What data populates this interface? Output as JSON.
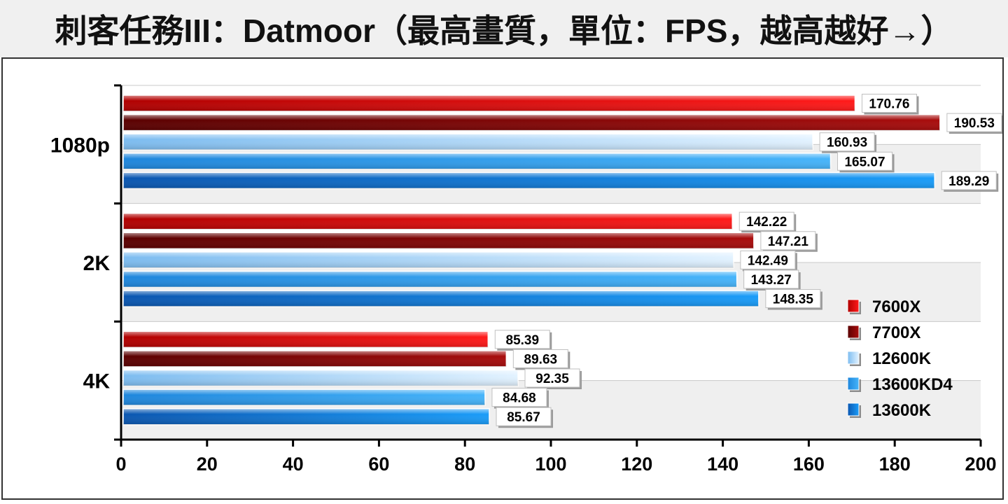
{
  "title": "刺客任務III：Datmoor（最高畫質，單位：FPS，越高越好→）",
  "chart_data": {
    "type": "bar",
    "orientation": "horizontal",
    "title": "刺客任務III：Datmoor（最高畫質，單位：FPS，越高越好→）",
    "categories": [
      "1080p",
      "2K",
      "4K"
    ],
    "series": [
      {
        "name": "7600X",
        "color": "#e01010",
        "values": [
          170.76,
          142.22,
          85.39
        ]
      },
      {
        "name": "7700X",
        "color": "#8a0a0a",
        "values": [
          190.53,
          147.21,
          89.63
        ]
      },
      {
        "name": "12600K",
        "color": "#a8d4f8",
        "values": [
          160.93,
          142.49,
          92.35
        ]
      },
      {
        "name": "13600KD4",
        "color": "#2e9ef0",
        "values": [
          165.07,
          143.27,
          84.68
        ]
      },
      {
        "name": "13600K",
        "color": "#1478d8",
        "values": [
          189.29,
          148.35,
          85.67
        ]
      }
    ],
    "xlim": [
      0,
      200
    ],
    "xticks": [
      "0",
      "20",
      "40",
      "60",
      "80",
      "100",
      "120",
      "140",
      "160",
      "180",
      "200"
    ],
    "grid": true,
    "legend_position": "bottom-right"
  }
}
